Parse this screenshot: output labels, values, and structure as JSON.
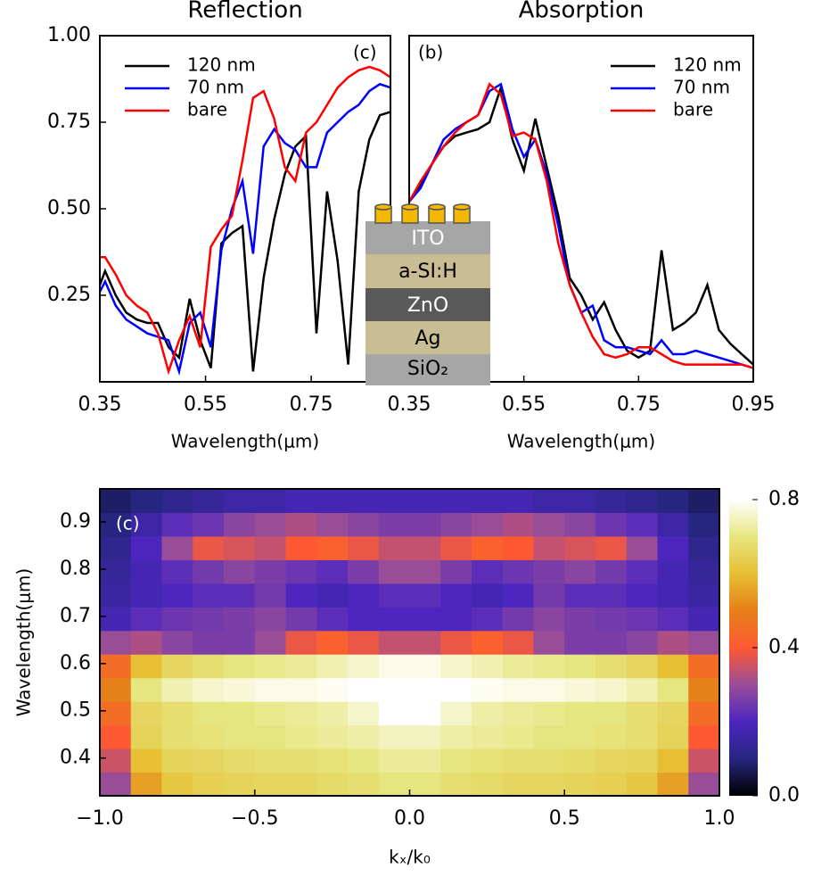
{
  "chart_data": [
    {
      "type": "line",
      "title": "Reflection",
      "x_label": "Wavelength(μm)",
      "annotation": "(c)",
      "legend": "upper left",
      "xlim": [
        0.35,
        0.9
      ],
      "ylim": [
        0,
        1
      ],
      "xticks": [
        0.35,
        0.55,
        0.75
      ],
      "yticks": [
        0.25,
        {
          "value": 0.5,
          "label": "0.50"
        },
        0.75,
        {
          "value": 1,
          "label": "1.00"
        }
      ],
      "x": [
        0.35,
        0.36,
        0.38,
        0.4,
        0.42,
        0.44,
        0.46,
        0.48,
        0.5,
        0.52,
        0.54,
        0.56,
        0.58,
        0.6,
        0.62,
        0.64,
        0.66,
        0.68,
        0.7,
        0.72,
        0.74,
        0.76,
        0.78,
        0.8,
        0.82,
        0.84,
        0.86,
        0.88,
        0.9
      ],
      "series": [
        {
          "name": "120 nm",
          "color": "#000000",
          "values": [
            0.28,
            0.32,
            0.25,
            0.2,
            0.18,
            0.17,
            0.17,
            0.1,
            0.07,
            0.24,
            0.12,
            0.04,
            0.4,
            0.43,
            0.45,
            0.03,
            0.3,
            0.47,
            0.6,
            0.68,
            0.71,
            0.14,
            0.55,
            0.35,
            0.05,
            0.55,
            0.7,
            0.77,
            0.78
          ]
        },
        {
          "name": "70 nm",
          "color": "#0000ff",
          "values": [
            0.26,
            0.29,
            0.22,
            0.18,
            0.16,
            0.14,
            0.13,
            0.12,
            0.03,
            0.17,
            0.2,
            0.1,
            0.38,
            0.5,
            0.58,
            0.37,
            0.68,
            0.73,
            0.69,
            0.67,
            0.62,
            0.62,
            0.72,
            0.75,
            0.78,
            0.8,
            0.84,
            0.86,
            0.85
          ]
        },
        {
          "name": "bare",
          "color": "#ff0000",
          "values": [
            0.36,
            0.36,
            0.31,
            0.25,
            0.22,
            0.2,
            0.14,
            0.03,
            0.12,
            0.19,
            0.1,
            0.39,
            0.44,
            0.48,
            0.64,
            0.82,
            0.84,
            0.76,
            0.62,
            0.58,
            0.72,
            0.75,
            0.8,
            0.85,
            0.88,
            0.9,
            0.91,
            0.9,
            0.88
          ]
        }
      ]
    },
    {
      "type": "line",
      "title": "Absorption",
      "x_label": "Wavelength(μm)",
      "annotation": "(b)",
      "legend": "upper right",
      "xlim": [
        0.35,
        0.95
      ],
      "ylim": [
        0,
        1
      ],
      "xticks": [
        0.35,
        0.55,
        0.75,
        0.95
      ],
      "x": [
        0.35,
        0.37,
        0.39,
        0.41,
        0.43,
        0.45,
        0.47,
        0.49,
        0.51,
        0.53,
        0.55,
        0.57,
        0.59,
        0.61,
        0.63,
        0.65,
        0.67,
        0.69,
        0.71,
        0.73,
        0.75,
        0.77,
        0.79,
        0.81,
        0.83,
        0.85,
        0.87,
        0.89,
        0.91,
        0.93,
        0.95
      ],
      "series": [
        {
          "name": "120 nm",
          "color": "#000000",
          "values": [
            0.52,
            0.57,
            0.63,
            0.68,
            0.71,
            0.72,
            0.73,
            0.75,
            0.85,
            0.7,
            0.61,
            0.76,
            0.62,
            0.48,
            0.3,
            0.25,
            0.18,
            0.23,
            0.15,
            0.09,
            0.07,
            0.09,
            0.38,
            0.15,
            0.17,
            0.2,
            0.28,
            0.15,
            0.11,
            0.08,
            0.05
          ]
        },
        {
          "name": "70 nm",
          "color": "#0000ff",
          "values": [
            0.52,
            0.56,
            0.63,
            0.7,
            0.73,
            0.75,
            0.77,
            0.84,
            0.86,
            0.73,
            0.65,
            0.7,
            0.6,
            0.45,
            0.28,
            0.2,
            0.22,
            0.12,
            0.1,
            0.1,
            0.09,
            0.08,
            0.12,
            0.08,
            0.08,
            0.09,
            0.08,
            0.07,
            0.06,
            0.05,
            0.04
          ]
        },
        {
          "name": "bare",
          "color": "#ff0000",
          "values": [
            0.52,
            0.58,
            0.63,
            0.68,
            0.72,
            0.75,
            0.77,
            0.86,
            0.83,
            0.71,
            0.72,
            0.7,
            0.58,
            0.4,
            0.28,
            0.2,
            0.13,
            0.08,
            0.07,
            0.08,
            0.1,
            0.1,
            0.08,
            0.06,
            0.05,
            0.05,
            0.05,
            0.05,
            0.05,
            0.05,
            0.04
          ]
        }
      ]
    },
    {
      "type": "heatmap",
      "annotation": "(c)",
      "x_label": "kₓ/k₀",
      "y_label": "Wavelength(μm)",
      "xlim": [
        -1,
        1
      ],
      "ylim": [
        0.32,
        0.97
      ],
      "xticks": [
        {
          "value": -1,
          "label": "−1.0"
        },
        {
          "value": -0.5,
          "label": "−0.5"
        },
        {
          "value": 0,
          "label": "0.0"
        },
        0.5,
        {
          "value": 1,
          "label": "1.0"
        }
      ],
      "yticks": [
        0.4,
        0.5,
        0.6,
        0.7,
        0.8,
        0.9
      ],
      "x": [
        -0.95,
        -0.85,
        -0.75,
        -0.65,
        -0.55,
        -0.45,
        -0.35,
        -0.25,
        -0.15,
        -0.05,
        0.05,
        0.15,
        0.25,
        0.35,
        0.45,
        0.55,
        0.65,
        0.75,
        0.85,
        0.95
      ],
      "y": [
        0.345,
        0.395,
        0.445,
        0.495,
        0.545,
        0.595,
        0.645,
        0.695,
        0.745,
        0.795,
        0.845,
        0.895,
        0.945
      ],
      "z": [
        [
          0.3,
          0.55,
          0.62,
          0.64,
          0.65,
          0.66,
          0.66,
          0.67,
          0.68,
          0.7,
          0.7,
          0.68,
          0.67,
          0.66,
          0.66,
          0.65,
          0.64,
          0.62,
          0.55,
          0.3
        ],
        [
          0.35,
          0.6,
          0.65,
          0.66,
          0.67,
          0.68,
          0.68,
          0.69,
          0.7,
          0.72,
          0.72,
          0.7,
          0.69,
          0.68,
          0.68,
          0.67,
          0.66,
          0.65,
          0.6,
          0.35
        ],
        [
          0.4,
          0.65,
          0.68,
          0.69,
          0.7,
          0.7,
          0.71,
          0.72,
          0.73,
          0.75,
          0.75,
          0.73,
          0.72,
          0.71,
          0.7,
          0.7,
          0.69,
          0.68,
          0.65,
          0.4
        ],
        [
          0.45,
          0.66,
          0.68,
          0.7,
          0.7,
          0.71,
          0.72,
          0.73,
          0.76,
          0.8,
          0.8,
          0.76,
          0.73,
          0.72,
          0.71,
          0.7,
          0.7,
          0.68,
          0.66,
          0.45
        ],
        [
          0.5,
          0.7,
          0.74,
          0.76,
          0.77,
          0.78,
          0.78,
          0.79,
          0.8,
          0.8,
          0.8,
          0.8,
          0.79,
          0.78,
          0.78,
          0.77,
          0.76,
          0.74,
          0.7,
          0.5
        ],
        [
          0.45,
          0.6,
          0.66,
          0.68,
          0.7,
          0.71,
          0.72,
          0.74,
          0.76,
          0.78,
          0.78,
          0.76,
          0.74,
          0.72,
          0.71,
          0.7,
          0.68,
          0.66,
          0.6,
          0.45
        ],
        [
          0.3,
          0.32,
          0.28,
          0.26,
          0.26,
          0.3,
          0.38,
          0.42,
          0.38,
          0.34,
          0.34,
          0.38,
          0.42,
          0.38,
          0.3,
          0.26,
          0.26,
          0.28,
          0.32,
          0.3
        ],
        [
          0.18,
          0.22,
          0.24,
          0.25,
          0.26,
          0.28,
          0.25,
          0.22,
          0.2,
          0.2,
          0.2,
          0.2,
          0.22,
          0.25,
          0.28,
          0.26,
          0.25,
          0.24,
          0.22,
          0.18
        ],
        [
          0.15,
          0.18,
          0.2,
          0.22,
          0.22,
          0.25,
          0.2,
          0.18,
          0.2,
          0.22,
          0.22,
          0.2,
          0.18,
          0.2,
          0.25,
          0.22,
          0.22,
          0.2,
          0.18,
          0.15
        ],
        [
          0.14,
          0.18,
          0.22,
          0.25,
          0.28,
          0.26,
          0.24,
          0.22,
          0.26,
          0.3,
          0.3,
          0.26,
          0.22,
          0.24,
          0.26,
          0.28,
          0.25,
          0.22,
          0.18,
          0.14
        ],
        [
          0.12,
          0.2,
          0.3,
          0.38,
          0.36,
          0.34,
          0.4,
          0.42,
          0.38,
          0.34,
          0.34,
          0.38,
          0.42,
          0.4,
          0.34,
          0.36,
          0.38,
          0.3,
          0.2,
          0.12
        ],
        [
          0.1,
          0.16,
          0.22,
          0.24,
          0.28,
          0.3,
          0.32,
          0.3,
          0.28,
          0.26,
          0.26,
          0.28,
          0.3,
          0.32,
          0.3,
          0.28,
          0.24,
          0.22,
          0.16,
          0.1
        ],
        [
          0.08,
          0.1,
          0.12,
          0.14,
          0.16,
          0.16,
          0.18,
          0.18,
          0.18,
          0.18,
          0.18,
          0.18,
          0.18,
          0.18,
          0.16,
          0.16,
          0.14,
          0.12,
          0.1,
          0.08
        ]
      ],
      "colorbar": {
        "lim": [
          0,
          0.8
        ],
        "ticks": [
          {
            "value": 0,
            "label": "0.0"
          },
          0.4,
          0.8
        ]
      },
      "colormap": [
        "#000000",
        "#262680",
        "#4d26bf",
        "#994d99",
        "#ff5933",
        "#e68019",
        "#e6bf33",
        "#e6e680",
        "#ffffff"
      ]
    }
  ],
  "inset": {
    "layers": [
      "ITO",
      "a-SI:H",
      "ZnO",
      "Ag",
      "SiO₂"
    ]
  }
}
